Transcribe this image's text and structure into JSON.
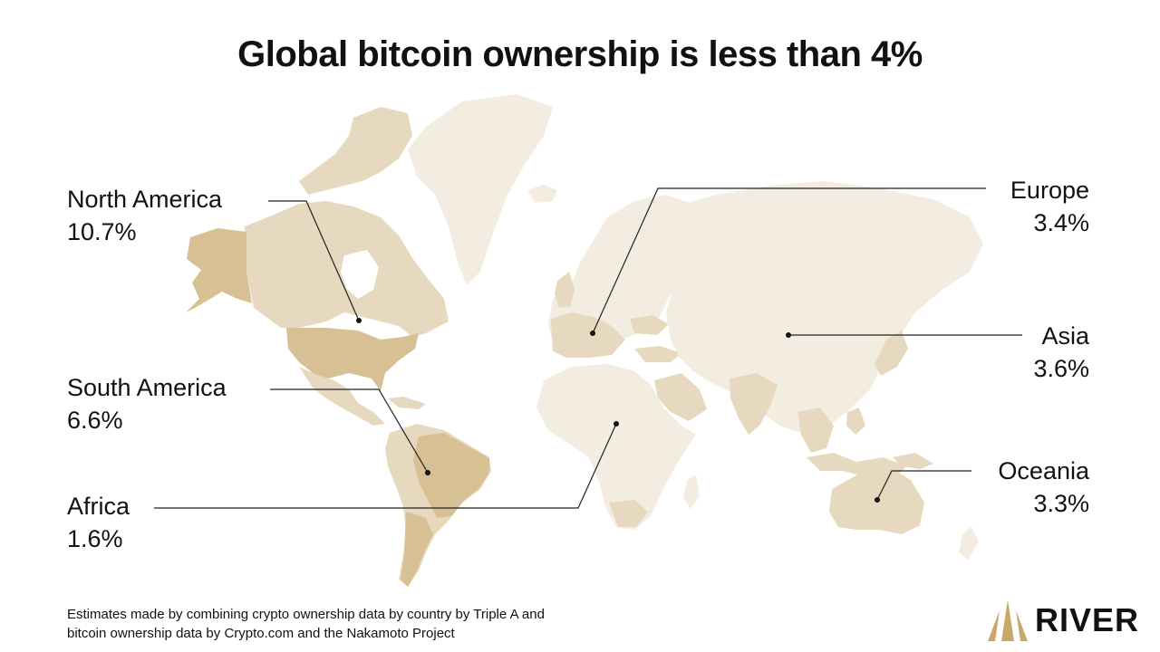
{
  "title": "Global bitcoin ownership is less than 4%",
  "regions": [
    {
      "id": "north-america",
      "name": "North America",
      "percent": "10.7%",
      "value": 10.7
    },
    {
      "id": "south-america",
      "name": "South America",
      "percent": "6.6%",
      "value": 6.6
    },
    {
      "id": "africa",
      "name": "Africa",
      "percent": "1.6%",
      "value": 1.6
    },
    {
      "id": "europe",
      "name": "Europe",
      "percent": "3.4%",
      "value": 3.4
    },
    {
      "id": "asia",
      "name": "Asia",
      "percent": "3.6%",
      "value": 3.6
    },
    {
      "id": "oceania",
      "name": "Oceania",
      "percent": "3.3%",
      "value": 3.3
    }
  ],
  "footnote": {
    "line1": "Estimates made by combining crypto ownership data by country by Triple A and",
    "line2": "bitcoin ownership data by Crypto.com and the Nakamoto Project"
  },
  "logo": {
    "text": "RIVER"
  },
  "colors": {
    "land_light": "#f3ece1",
    "land_medium": "#e7d9c0",
    "land_dark": "#d8c095",
    "leader_line": "#222222",
    "logo_gold": "#c8a96b"
  }
}
